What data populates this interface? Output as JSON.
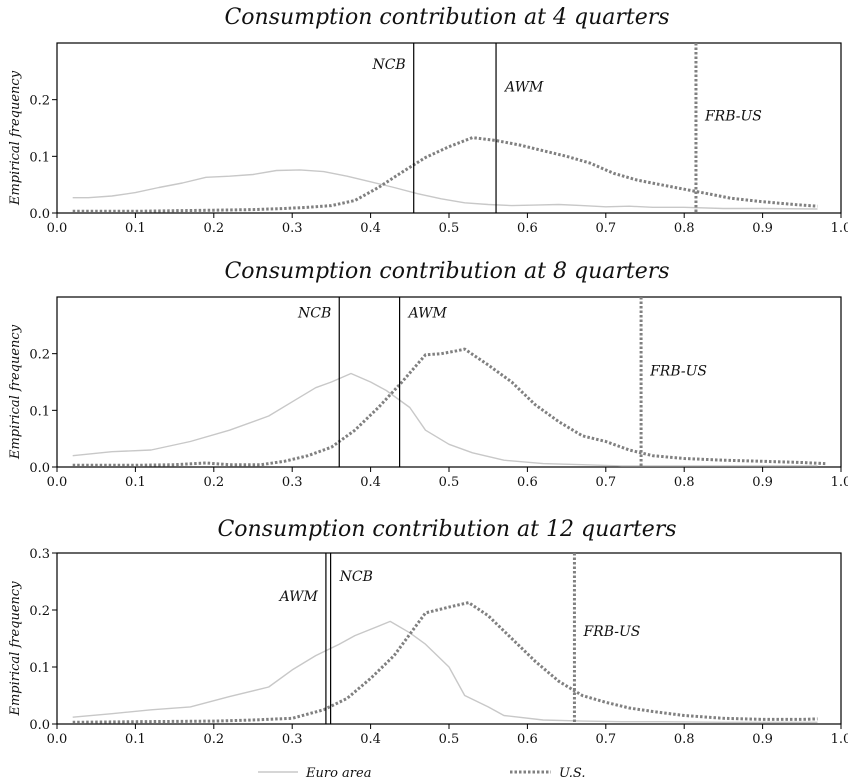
{
  "chart_data": [
    {
      "type": "line",
      "title": "Consumption contribution at 4 quarters",
      "ylabel": "Empirical frequency",
      "xlim": [
        0.0,
        1.0
      ],
      "ylim": [
        0.0,
        0.3
      ],
      "xticks": [
        "0.0",
        "0.1",
        "0.2",
        "0.3",
        "0.4",
        "0.5",
        "0.6",
        "0.7",
        "0.8",
        "0.9",
        "1.0"
      ],
      "yticks": [
        "0.0",
        "0.1",
        "0.2"
      ],
      "series": [
        {
          "name": "Euro area",
          "color": "#c8c8c8",
          "style": "solid",
          "points": [
            [
              0.02,
              0.027
            ],
            [
              0.04,
              0.027
            ],
            [
              0.07,
              0.03
            ],
            [
              0.1,
              0.036
            ],
            [
              0.13,
              0.045
            ],
            [
              0.16,
              0.053
            ],
            [
              0.19,
              0.063
            ],
            [
              0.22,
              0.065
            ],
            [
              0.25,
              0.068
            ],
            [
              0.28,
              0.075
            ],
            [
              0.31,
              0.076
            ],
            [
              0.34,
              0.073
            ],
            [
              0.37,
              0.065
            ],
            [
              0.4,
              0.055
            ],
            [
              0.43,
              0.045
            ],
            [
              0.46,
              0.034
            ],
            [
              0.49,
              0.025
            ],
            [
              0.52,
              0.018
            ],
            [
              0.55,
              0.015
            ],
            [
              0.58,
              0.013
            ],
            [
              0.61,
              0.014
            ],
            [
              0.64,
              0.015
            ],
            [
              0.67,
              0.013
            ],
            [
              0.7,
              0.011
            ],
            [
              0.73,
              0.012
            ],
            [
              0.76,
              0.01
            ],
            [
              0.8,
              0.01
            ],
            [
              0.85,
              0.008
            ],
            [
              0.9,
              0.008
            ],
            [
              0.97,
              0.007
            ]
          ]
        },
        {
          "name": "U.S.",
          "color": "#808080",
          "style": "dotted",
          "points": [
            [
              0.02,
              0.003
            ],
            [
              0.06,
              0.003
            ],
            [
              0.1,
              0.003
            ],
            [
              0.15,
              0.004
            ],
            [
              0.2,
              0.005
            ],
            [
              0.25,
              0.006
            ],
            [
              0.29,
              0.008
            ],
            [
              0.32,
              0.01
            ],
            [
              0.35,
              0.013
            ],
            [
              0.38,
              0.022
            ],
            [
              0.41,
              0.045
            ],
            [
              0.44,
              0.072
            ],
            [
              0.47,
              0.098
            ],
            [
              0.5,
              0.117
            ],
            [
              0.53,
              0.133
            ],
            [
              0.56,
              0.128
            ],
            [
              0.59,
              0.12
            ],
            [
              0.62,
              0.11
            ],
            [
              0.65,
              0.1
            ],
            [
              0.68,
              0.088
            ],
            [
              0.71,
              0.07
            ],
            [
              0.74,
              0.058
            ],
            [
              0.77,
              0.05
            ],
            [
              0.8,
              0.042
            ],
            [
              0.83,
              0.034
            ],
            [
              0.86,
              0.026
            ],
            [
              0.9,
              0.02
            ],
            [
              0.94,
              0.015
            ],
            [
              0.97,
              0.012
            ]
          ]
        }
      ],
      "vlines": [
        {
          "label": "NCB",
          "x": 0.455,
          "style": "solid",
          "label_y": 0.263,
          "label_side": "left"
        },
        {
          "label": "AWM",
          "x": 0.56,
          "style": "solid",
          "label_y": 0.223,
          "label_side": "right"
        },
        {
          "label": "FRB-US",
          "x": 0.815,
          "style": "dotted",
          "label_y": 0.172,
          "label_side": "right"
        }
      ]
    },
    {
      "type": "line",
      "title": "Consumption contribution at 8 quarters",
      "ylabel": "Empirical frequency",
      "xlim": [
        0.0,
        1.0
      ],
      "ylim": [
        0.0,
        0.3
      ],
      "xticks": [
        "0.0",
        "0.1",
        "0.2",
        "0.3",
        "0.4",
        "0.5",
        "0.6",
        "0.7",
        "0.8",
        "0.9",
        "1.0"
      ],
      "yticks": [
        "0.0",
        "0.1",
        "0.2"
      ],
      "series": [
        {
          "name": "Euro area",
          "color": "#c8c8c8",
          "style": "solid",
          "points": [
            [
              0.02,
              0.02
            ],
            [
              0.07,
              0.027
            ],
            [
              0.12,
              0.03
            ],
            [
              0.17,
              0.045
            ],
            [
              0.22,
              0.065
            ],
            [
              0.27,
              0.09
            ],
            [
              0.3,
              0.115
            ],
            [
              0.33,
              0.14
            ],
            [
              0.35,
              0.15
            ],
            [
              0.375,
              0.165
            ],
            [
              0.4,
              0.15
            ],
            [
              0.42,
              0.135
            ],
            [
              0.45,
              0.105
            ],
            [
              0.47,
              0.065
            ],
            [
              0.5,
              0.04
            ],
            [
              0.53,
              0.025
            ],
            [
              0.57,
              0.012
            ],
            [
              0.62,
              0.006
            ],
            [
              0.67,
              0.004
            ],
            [
              0.72,
              0.002
            ],
            [
              0.77,
              0.002
            ],
            [
              0.85,
              0.002
            ],
            [
              0.97,
              0.002
            ]
          ]
        },
        {
          "name": "U.S.",
          "color": "#808080",
          "style": "dotted",
          "points": [
            [
              0.02,
              0.003
            ],
            [
              0.1,
              0.003
            ],
            [
              0.15,
              0.004
            ],
            [
              0.19,
              0.007
            ],
            [
              0.22,
              0.004
            ],
            [
              0.26,
              0.004
            ],
            [
              0.29,
              0.01
            ],
            [
              0.32,
              0.02
            ],
            [
              0.35,
              0.035
            ],
            [
              0.38,
              0.065
            ],
            [
              0.41,
              0.105
            ],
            [
              0.44,
              0.15
            ],
            [
              0.47,
              0.198
            ],
            [
              0.49,
              0.2
            ],
            [
              0.51,
              0.205
            ],
            [
              0.52,
              0.208
            ],
            [
              0.55,
              0.18
            ],
            [
              0.58,
              0.15
            ],
            [
              0.61,
              0.11
            ],
            [
              0.64,
              0.08
            ],
            [
              0.67,
              0.055
            ],
            [
              0.7,
              0.045
            ],
            [
              0.73,
              0.03
            ],
            [
              0.76,
              0.02
            ],
            [
              0.8,
              0.015
            ],
            [
              0.85,
              0.012
            ],
            [
              0.9,
              0.01
            ],
            [
              0.95,
              0.008
            ],
            [
              0.98,
              0.006
            ]
          ]
        }
      ],
      "vlines": [
        {
          "label": "NCB",
          "x": 0.36,
          "style": "solid",
          "label_y": 0.273,
          "label_side": "left"
        },
        {
          "label": "AWM",
          "x": 0.437,
          "style": "solid",
          "label_y": 0.273,
          "label_side": "right"
        },
        {
          "label": "FRB-US",
          "x": 0.745,
          "style": "dotted",
          "label_y": 0.17,
          "label_side": "right"
        }
      ]
    },
    {
      "type": "line",
      "title": "Consumption contribution at 12 quarters",
      "ylabel": "Empirical frequency",
      "xlim": [
        0.0,
        1.0
      ],
      "ylim": [
        0.0,
        0.3
      ],
      "xticks": [
        "0.0",
        "0.1",
        "0.2",
        "0.3",
        "0.4",
        "0.5",
        "0.6",
        "0.7",
        "0.8",
        "0.9",
        "1.0"
      ],
      "yticks": [
        "0.0",
        "0.1",
        "0.2",
        "0.3"
      ],
      "series": [
        {
          "name": "Euro area",
          "color": "#c8c8c8",
          "style": "solid",
          "points": [
            [
              0.02,
              0.012
            ],
            [
              0.07,
              0.018
            ],
            [
              0.12,
              0.025
            ],
            [
              0.17,
              0.03
            ],
            [
              0.22,
              0.048
            ],
            [
              0.27,
              0.065
            ],
            [
              0.3,
              0.095
            ],
            [
              0.33,
              0.12
            ],
            [
              0.36,
              0.14
            ],
            [
              0.38,
              0.155
            ],
            [
              0.425,
              0.18
            ],
            [
              0.45,
              0.16
            ],
            [
              0.47,
              0.14
            ],
            [
              0.5,
              0.1
            ],
            [
              0.52,
              0.05
            ],
            [
              0.55,
              0.03
            ],
            [
              0.57,
              0.015
            ],
            [
              0.62,
              0.007
            ],
            [
              0.67,
              0.005
            ],
            [
              0.72,
              0.004
            ],
            [
              0.77,
              0.004
            ],
            [
              0.85,
              0.003
            ],
            [
              0.97,
              0.003
            ]
          ]
        },
        {
          "name": "U.S.",
          "color": "#808080",
          "style": "dotted",
          "points": [
            [
              0.02,
              0.003
            ],
            [
              0.1,
              0.004
            ],
            [
              0.2,
              0.005
            ],
            [
              0.25,
              0.007
            ],
            [
              0.3,
              0.01
            ],
            [
              0.34,
              0.025
            ],
            [
              0.37,
              0.045
            ],
            [
              0.4,
              0.08
            ],
            [
              0.43,
              0.12
            ],
            [
              0.47,
              0.195
            ],
            [
              0.5,
              0.205
            ],
            [
              0.525,
              0.213
            ],
            [
              0.55,
              0.19
            ],
            [
              0.58,
              0.15
            ],
            [
              0.61,
              0.11
            ],
            [
              0.64,
              0.075
            ],
            [
              0.67,
              0.05
            ],
            [
              0.7,
              0.038
            ],
            [
              0.73,
              0.028
            ],
            [
              0.76,
              0.022
            ],
            [
              0.8,
              0.015
            ],
            [
              0.85,
              0.01
            ],
            [
              0.9,
              0.008
            ],
            [
              0.95,
              0.008
            ],
            [
              0.97,
              0.009
            ]
          ]
        }
      ],
      "vlines": [
        {
          "label": "AWM",
          "x": 0.343,
          "style": "solid",
          "label_y": 0.225,
          "label_side": "left"
        },
        {
          "label": "NCB",
          "x": 0.349,
          "style": "solid",
          "label_y": 0.26,
          "label_side": "right"
        },
        {
          "label": "FRB-US",
          "x": 0.66,
          "style": "dotted",
          "label_y": 0.163,
          "label_side": "right"
        }
      ]
    }
  ],
  "legend": {
    "placement": "bottom",
    "items": [
      {
        "label": "Euro area",
        "color": "#c8c8c8",
        "style": "solid"
      },
      {
        "label": "U.S.",
        "color": "#808080",
        "style": "dotted"
      }
    ]
  }
}
